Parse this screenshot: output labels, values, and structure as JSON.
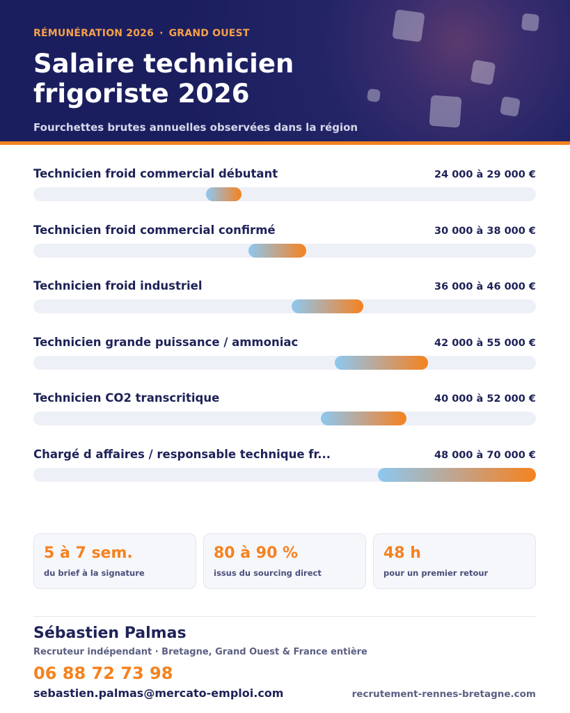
{
  "header": {
    "kicker_left": "RÉMUNÉRATION 2026",
    "kicker_separator": "·",
    "kicker_right": "GRAND OUEST",
    "title": "Salaire technicien frigoriste 2026",
    "subtitle": "Fourchettes brutes annuelles observées dans la région"
  },
  "chart_data": {
    "type": "bar",
    "orientation": "horizontal-range",
    "unit": "€",
    "xlim": [
      0,
      70000
    ],
    "rows": [
      {
        "label": "Technicien froid commercial débutant",
        "value_text": "24 000 à 29 000 €",
        "min": 24000,
        "max": 29000
      },
      {
        "label": "Technicien froid commercial confirmé",
        "value_text": "30 000 à 38 000 €",
        "min": 30000,
        "max": 38000
      },
      {
        "label": "Technicien froid industriel",
        "value_text": "36 000 à 46 000 €",
        "min": 36000,
        "max": 46000
      },
      {
        "label": "Technicien grande puissance / ammoniac",
        "value_text": "42 000 à 55 000 €",
        "min": 42000,
        "max": 55000
      },
      {
        "label": "Technicien CO2 transcritique",
        "value_text": "40 000 à 52 000 €",
        "min": 40000,
        "max": 52000
      },
      {
        "label": "Chargé d affaires / responsable technique fr...",
        "value_text": "48 000 à 70 000 €",
        "min": 48000,
        "max": 70000
      }
    ],
    "colors": {
      "track": "#eef0f7",
      "gradient_start": "#8cc8f0",
      "gradient_end": "#f5821f"
    }
  },
  "stats": [
    {
      "value": "5 à 7 sem.",
      "label": "du brief à la signature"
    },
    {
      "value": "80 à 90 %",
      "label": "issus du sourcing direct"
    },
    {
      "value": "48 h",
      "label": "pour un premier retour"
    }
  ],
  "contact": {
    "name": "Sébastien Palmas",
    "role": "Recruteur indépendant · Bretagne, Grand Ouest & France entière",
    "phone": "06 88 72 73 98",
    "email": "sebastien.palmas@mercato-emploi.com",
    "website": "recrutement-rennes-bretagne.com"
  },
  "colors": {
    "navy": "#1e2257",
    "accent": "#f5821f"
  }
}
